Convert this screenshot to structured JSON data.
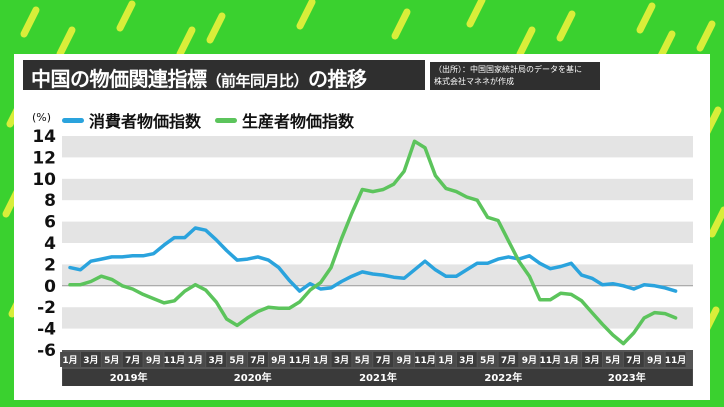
{
  "title": {
    "main": "中国の物価関連指標",
    "paren": "（前年同月比）",
    "suffix": "の推移"
  },
  "source": {
    "line1": "（出所）：中国国家統計局のデータを基に",
    "line2": "株式会社マネネが作成"
  },
  "colors": {
    "background": "#3ad12f",
    "panel": "#ffffff",
    "band": "#e4e4e4",
    "title_bg": "#2f2f2f",
    "cpi": "#2aa3dd",
    "ppi": "#5cc45c",
    "axis_bar": "#555555",
    "month_cell": "#4a4a4a",
    "month_cell_alt": "#3c3c3c",
    "year_cell": "#3a3a3a"
  },
  "chart_data": {
    "type": "line",
    "unit_label": "(%)",
    "ylim": [
      -6,
      14
    ],
    "yticks": [
      14,
      12,
      10,
      8,
      6,
      4,
      2,
      0,
      -2,
      -4,
      -6
    ],
    "grid": "alternating-bands",
    "legend_position": "top-left",
    "month_ticks": [
      "1月",
      "3月",
      "5月",
      "7月",
      "9月",
      "11月",
      "1月",
      "3月",
      "5月",
      "7月",
      "9月",
      "11月",
      "1月",
      "3月",
      "5月",
      "7月",
      "9月",
      "11月",
      "1月",
      "3月",
      "5月",
      "7月",
      "9月",
      "11月",
      "1月",
      "3月",
      "5月",
      "7月",
      "9月",
      "11月"
    ],
    "years": [
      "2019年",
      "2020年",
      "2021年",
      "2022年",
      "2023年"
    ],
    "series": [
      {
        "name": "消費者物価指数",
        "color": "#2aa3dd",
        "values": [
          1.7,
          1.5,
          2.3,
          2.5,
          2.7,
          2.7,
          2.8,
          2.8,
          3.0,
          3.8,
          4.5,
          4.5,
          5.4,
          5.2,
          4.3,
          3.3,
          2.4,
          2.5,
          2.7,
          2.4,
          1.7,
          0.5,
          -0.5,
          0.2,
          -0.3,
          -0.2,
          0.4,
          0.9,
          1.3,
          1.1,
          1.0,
          0.8,
          0.7,
          1.5,
          2.3,
          1.5,
          0.9,
          0.9,
          1.5,
          2.1,
          2.1,
          2.5,
          2.7,
          2.5,
          2.8,
          2.1,
          1.6,
          1.8,
          2.1,
          1.0,
          0.7,
          0.1,
          0.2,
          0.0,
          -0.3,
          0.1,
          0.0,
          -0.2,
          -0.5
        ]
      },
      {
        "name": "生産者物価指数",
        "color": "#5cc45c",
        "values": [
          0.1,
          0.1,
          0.4,
          0.9,
          0.6,
          0.0,
          -0.3,
          -0.8,
          -1.2,
          -1.6,
          -1.4,
          -0.5,
          0.1,
          -0.4,
          -1.5,
          -3.1,
          -3.7,
          -3.0,
          -2.4,
          -2.0,
          -2.1,
          -2.1,
          -1.5,
          -0.4,
          0.3,
          1.7,
          4.4,
          6.8,
          9.0,
          8.8,
          9.0,
          9.5,
          10.7,
          13.5,
          12.9,
          10.3,
          9.1,
          8.8,
          8.3,
          8.0,
          6.4,
          6.1,
          4.2,
          2.3,
          0.9,
          -1.3,
          -1.3,
          -0.7,
          -0.8,
          -1.4,
          -2.5,
          -3.6,
          -4.6,
          -5.4,
          -4.4,
          -3.0,
          -2.5,
          -2.6,
          -3.0
        ]
      }
    ]
  }
}
